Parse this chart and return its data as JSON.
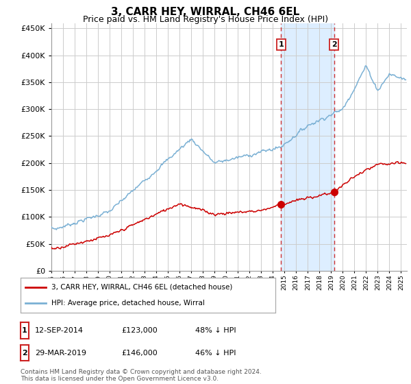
{
  "title": "3, CARR HEY, WIRRAL, CH46 6EL",
  "subtitle": "Price paid vs. HM Land Registry's House Price Index (HPI)",
  "title_fontsize": 11,
  "subtitle_fontsize": 9,
  "ytick_values": [
    0,
    50000,
    100000,
    150000,
    200000,
    250000,
    300000,
    350000,
    400000,
    450000
  ],
  "ylim": [
    0,
    460000
  ],
  "xlim_start": 1995.0,
  "xlim_end": 2025.5,
  "transaction1": {
    "date_label": "12-SEP-2014",
    "x": 2014.7,
    "price": 123000,
    "pct": "48% ↓ HPI",
    "marker_label": "1"
  },
  "transaction2": {
    "date_label": "29-MAR-2019",
    "x": 2019.25,
    "price": 146000,
    "pct": "46% ↓ HPI",
    "marker_label": "2"
  },
  "red_line_color": "#cc0000",
  "blue_line_color": "#7ab0d4",
  "shade_color": "#ddeeff",
  "vline_color": "#cc3333",
  "grid_color": "#cccccc",
  "legend_line1": "3, CARR HEY, WIRRAL, CH46 6EL (detached house)",
  "legend_line2": "HPI: Average price, detached house, Wirral",
  "footer": "Contains HM Land Registry data © Crown copyright and database right 2024.\nThis data is licensed under the Open Government Licence v3.0.",
  "background_color": "#ffffff"
}
